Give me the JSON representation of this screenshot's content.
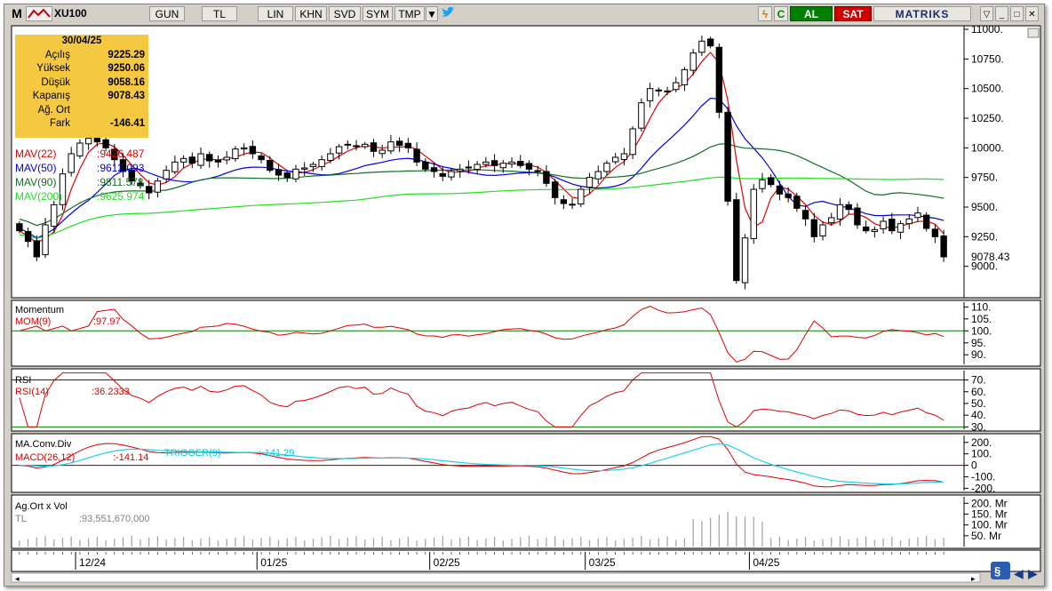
{
  "toolbar": {
    "logo": "M",
    "symbol": "XU100",
    "period": "GUN",
    "currency": "TL",
    "buttons": [
      "LIN",
      "KHN",
      "SVD",
      "SYM",
      "TMP"
    ],
    "buy": "AL",
    "sell": "SAT",
    "brand": "MATRIKS",
    "colors": {
      "buy": "#008000",
      "sell": "#d00000",
      "info_box": "#f5c842"
    }
  },
  "info": {
    "date": "30/04/25",
    "rows": [
      {
        "label": "Açılış",
        "value": "9225.29"
      },
      {
        "label": "Yüksek",
        "value": "9250.06"
      },
      {
        "label": "Düşük",
        "value": "9058.16"
      },
      {
        "label": "Kapanış",
        "value": "9078.43"
      },
      {
        "label": "Ağ. Ort",
        "value": ""
      },
      {
        "label": "Fark",
        "value": "-146.41"
      }
    ]
  },
  "chart_data": [
    {
      "type": "candlestick",
      "ylim": [
        8750,
        11000
      ],
      "y_ticks": [
        "11000.",
        "10750.",
        "10500.",
        "10250.",
        "10000.",
        "9750.",
        "9500.",
        "9250.",
        "9000."
      ],
      "last_price_label": "9078.43",
      "close": [
        9300,
        9210,
        9080,
        9350,
        9520,
        9780,
        9950,
        10040,
        10080,
        10050,
        10000,
        9900,
        9800,
        9720,
        9680,
        9620,
        9720,
        9810,
        9880,
        9910,
        9870,
        9950,
        9890,
        9880,
        9920,
        9990,
        10000,
        9950,
        9900,
        9810,
        9770,
        9750,
        9820,
        9830,
        9860,
        9900,
        9950,
        10010,
        10030,
        10010,
        10030,
        9970,
        9980,
        10050,
        10020,
        10000,
        9880,
        9820,
        9800,
        9760,
        9800,
        9820,
        9830,
        9860,
        9880,
        9850,
        9870,
        9880,
        9850,
        9820,
        9800,
        9700,
        9580,
        9530,
        9520,
        9650,
        9750,
        9800,
        9870,
        9920,
        9950,
        10160,
        10380,
        10500,
        10480,
        10480,
        10550,
        10660,
        10800,
        10900,
        10860,
        10300,
        9550,
        8880,
        9240,
        9650,
        9730,
        9690,
        9610,
        9580,
        9490,
        9400,
        9250,
        9350,
        9410,
        9520,
        9480,
        9350,
        9300,
        9310,
        9380,
        9300,
        9360,
        9400,
        9450,
        9320,
        9250,
        9080
      ],
      "series": [
        {
          "name": "MAV(22)",
          "label": ":9426.487",
          "color": "#e00000"
        },
        {
          "name": "MAV(50)",
          "label": ":9612.093",
          "color": "#0000e0"
        },
        {
          "name": "MAV(90)",
          "label": ":9811.578",
          "color": "#107020"
        },
        {
          "name": "MAV(200)",
          "label": ":9625.974",
          "color": "#20e020"
        }
      ]
    },
    {
      "type": "line",
      "title": "Momentum",
      "series_label": "MOM(9)",
      "value_label": ":97.97",
      "ylim": [
        86,
        112
      ],
      "y_ticks": [
        "110.",
        "105.",
        "100.",
        "95.",
        "90."
      ],
      "reference": 100
    },
    {
      "type": "line",
      "title": "RSI",
      "series_label": "RSI(14)",
      "value_label": ":36.2333",
      "ylim": [
        28,
        78
      ],
      "y_ticks": [
        "70.",
        "60.",
        "50.",
        "40.",
        "30."
      ],
      "reference_lines": [
        70,
        30
      ]
    },
    {
      "type": "line",
      "title": "MA.Conv.Div",
      "series_label": "MACD(26,12)",
      "value_label": ":-141.14",
      "trigger_label": "TRIGGER(9)",
      "trigger_value": ":-141.29",
      "ylim": [
        -220,
        260
      ],
      "y_ticks": [
        "200.",
        "100.",
        "0",
        "-100.",
        "-200."
      ],
      "reference": 0
    },
    {
      "type": "bar",
      "title": "Ag.Ort x Vol",
      "series_label": "TL",
      "value_label": ":93,551,670,000",
      "y_ticks": [
        "200. Mr",
        "150. Mr",
        "100. Mr",
        "50. Mr"
      ]
    }
  ],
  "x_labels": [
    "12/24",
    "01/25",
    "02/25",
    "03/25",
    "04/25"
  ]
}
